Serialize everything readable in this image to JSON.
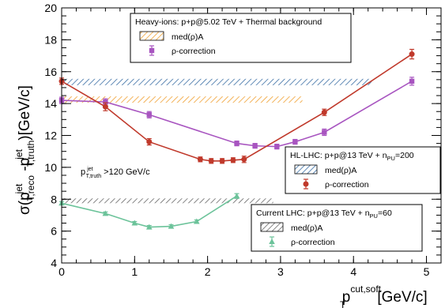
{
  "chart_data": {
    "type": "line",
    "ylabel": {
      "main": "σ(p",
      "sup1": "jet",
      "sub1": "T,reco",
      "mid": " -p",
      "sup2": "jet",
      "sub2": "T,truth",
      "end": ")[GeV/c]"
    },
    "xlabel": {
      "main": "p",
      "sup": "cut,soft",
      "sub": "T",
      "end": "[GeV/c]"
    },
    "xlim": [
      0,
      5.2
    ],
    "ylim": [
      4,
      20
    ],
    "xticks": [
      0,
      1,
      2,
      3,
      4,
      5
    ],
    "yticks": [
      4,
      6,
      8,
      10,
      12,
      14,
      16,
      18,
      20
    ],
    "x_tick_labels": [
      "0",
      "1",
      "2",
      "3",
      "4",
      "5"
    ],
    "y_tick_labels": [
      "4",
      "6",
      "8",
      "10",
      "12",
      "14",
      "16",
      "18",
      "20"
    ],
    "annotation": {
      "p": "p",
      "sup": "jet",
      "sub": "T,truth",
      "rest": ">120 GeV/c"
    },
    "bands": [
      {
        "key": "hi",
        "color": "#f0a030",
        "ylo": 14.05,
        "yhi": 14.45,
        "xlo": 0.0,
        "xhi": 3.3
      },
      {
        "key": "hl",
        "color": "#3a6ea5",
        "ylo": 15.15,
        "yhi": 15.55,
        "xlo": 0.0,
        "xhi": 4.25
      },
      {
        "key": "cur",
        "color": "#666666",
        "ylo": 7.75,
        "yhi": 8.05,
        "xlo": 0.0,
        "xhi": 2.9
      }
    ],
    "series": [
      {
        "key": "hi",
        "color": "#a855c0",
        "marker": "square",
        "x": [
          0,
          0.6,
          1.2,
          2.4,
          2.65,
          2.95,
          3.2,
          3.6,
          4.8
        ],
        "y": [
          14.2,
          14.1,
          13.3,
          11.5,
          11.35,
          11.3,
          11.6,
          12.2,
          15.4
        ],
        "err": [
          0.2,
          0.2,
          0.2,
          0.15,
          0.15,
          0.15,
          0.15,
          0.2,
          0.25
        ]
      },
      {
        "key": "hl",
        "color": "#c0392b",
        "marker": "circle",
        "x": [
          0,
          0.6,
          1.2,
          1.9,
          2.05,
          2.2,
          2.35,
          2.5,
          3.6,
          4.8
        ],
        "y": [
          15.4,
          13.8,
          11.6,
          10.5,
          10.4,
          10.4,
          10.45,
          10.5,
          13.45,
          17.1
        ],
        "err": [
          0.2,
          0.25,
          0.2,
          0.15,
          0.15,
          0.15,
          0.15,
          0.2,
          0.2,
          0.3
        ]
      },
      {
        "key": "cur",
        "color": "#6cc39a",
        "marker": "triangle",
        "x": [
          0,
          0.6,
          1.0,
          1.2,
          1.5,
          1.85,
          2.4
        ],
        "y": [
          7.75,
          7.1,
          6.5,
          6.25,
          6.3,
          6.6,
          8.2
        ],
        "err": [
          0.1,
          0.1,
          0.1,
          0.1,
          0.1,
          0.1,
          0.15
        ]
      }
    ],
    "legends": [
      {
        "key": "hi",
        "header": {
          "text": "Heavy-ions: p+p@5.02 TeV + Thermal background"
        },
        "band_label": "med(ρ)A",
        "marker_label": "ρ-correction"
      },
      {
        "key": "hl",
        "header": {
          "text": "HL-LHC: p+p@13 TeV + n",
          "sub": "PU",
          "end": "=200"
        },
        "band_label": "med(ρ)A",
        "marker_label": "ρ-correction"
      },
      {
        "key": "cur",
        "header": {
          "text": "Current LHC: p+p@13 TeV + n",
          "sub": "PU",
          "end": "=60"
        },
        "band_label": "med(ρ)A",
        "marker_label": "ρ-correction"
      }
    ]
  }
}
